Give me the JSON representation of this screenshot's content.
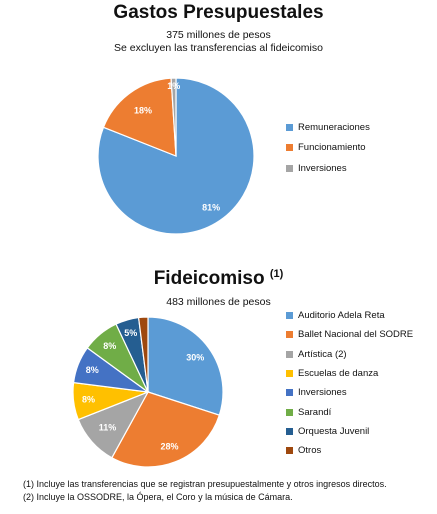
{
  "chart_data": [
    {
      "type": "pie",
      "title": "Gastos Presupuestales",
      "subtitle_lines": [
        "375 millones de pesos",
        "Se excluyen las transferencias al fideicomiso"
      ],
      "categories": [
        "Remuneraciones",
        "Funcionamiento",
        "Inversiones"
      ],
      "values": [
        81,
        18,
        1
      ],
      "data_labels": [
        "81%",
        "18%",
        "1%"
      ],
      "colors": [
        "#5b9bd5",
        "#ed7d31",
        "#a5a5a5"
      ],
      "legend_position": "right"
    },
    {
      "type": "pie",
      "title": "Fideicomiso",
      "title_superscript": "(1)",
      "subtitle_lines": [
        "483 millones de pesos"
      ],
      "categories": [
        "Auditorio Adela Reta",
        "Ballet Nacional del SODRE",
        "Artística (2)",
        "Escuelas de danza",
        "Inversiones",
        "Sarandí",
        "Orquesta Juvenil",
        "Otros"
      ],
      "values": [
        30,
        28,
        11,
        8,
        8,
        8,
        5,
        2
      ],
      "data_labels": [
        "30%",
        "28%",
        "11%",
        "8%",
        "8%",
        "8%",
        "5%",
        ""
      ],
      "colors": [
        "#5b9bd5",
        "#ed7d31",
        "#a5a5a5",
        "#ffc000",
        "#4472c4",
        "#70ad47",
        "#255e91",
        "#9e480e"
      ],
      "legend_position": "right"
    }
  ],
  "footnotes": [
    "(1) Incluye las transferencias que se registran presupuestalmente y otros ingresos directos.",
    "(2) Incluye la OSSODRE, la Ópera, el Coro y la música de Cámara."
  ]
}
